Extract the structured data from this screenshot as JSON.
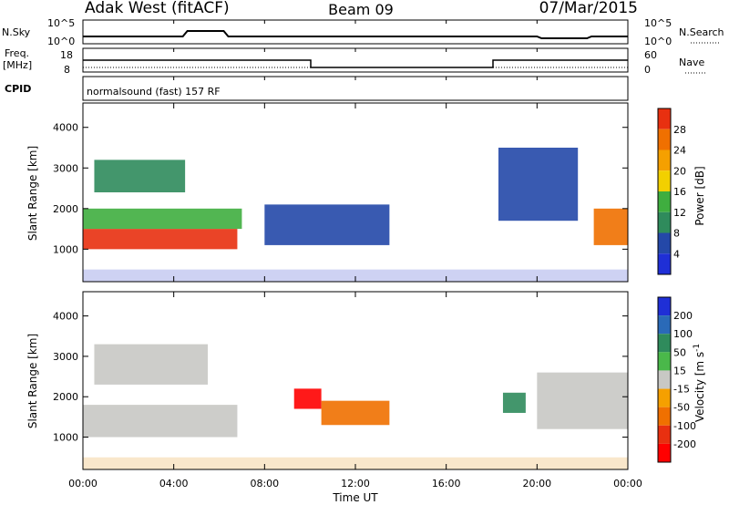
{
  "header": {
    "station": "Adak West (fitACF)",
    "beam": "Beam 09",
    "date": "07/Mar/2015"
  },
  "summary_panels": {
    "nsky": {
      "label": "N.Sky",
      "ticks": [
        "10^5",
        "10^0"
      ]
    },
    "nsearch": {
      "label": "N.Search",
      "ticks": [
        "10^5",
        "10^0"
      ]
    },
    "freq": {
      "label_line1": "Freq.",
      "label_line2": "[MHz]",
      "ticks": [
        "18",
        "8"
      ]
    },
    "nave": {
      "label": "Nave",
      "ticks": [
        "60",
        "0"
      ]
    },
    "cpid": {
      "label": "CPID",
      "text": "normalsound (fast) 157 RF"
    }
  },
  "chart_data": [
    {
      "type": "heatmap",
      "title": "",
      "ylabel": "Slant Range [km]",
      "xlabel": "",
      "ylim": [
        200,
        4600
      ],
      "xlim_hours": [
        0,
        24
      ],
      "y_ticks": [
        "1000",
        "2000",
        "3000",
        "4000"
      ],
      "colorbar": {
        "label": "Power [dB]",
        "ticks": [
          "4",
          "8",
          "12",
          "16",
          "20",
          "24",
          "28"
        ],
        "levels": [
          0,
          4,
          8,
          12,
          16,
          20,
          24,
          28,
          32
        ],
        "colors": [
          "#1f2fd6",
          "#2448a8",
          "#2f8b5c",
          "#3fae3f",
          "#f2d000",
          "#f5a000",
          "#f07000",
          "#e83010"
        ]
      },
      "regions": [
        {
          "t0": 0.0,
          "t1": 6.8,
          "r0": 1000,
          "r1": 1500,
          "value": 28
        },
        {
          "t0": 0.0,
          "t1": 7.0,
          "r0": 1500,
          "r1": 2000,
          "value": 14
        },
        {
          "t0": 0.5,
          "t1": 4.5,
          "r0": 2400,
          "r1": 3200,
          "value": 10
        },
        {
          "t0": 8.0,
          "t1": 13.5,
          "r0": 1100,
          "r1": 2100,
          "value": 6
        },
        {
          "t0": 18.3,
          "t1": 21.8,
          "r0": 1700,
          "r1": 3500,
          "value": 5
        },
        {
          "t0": 22.5,
          "t1": 24.0,
          "r0": 1100,
          "r1": 2000,
          "value": 24
        }
      ]
    },
    {
      "type": "heatmap",
      "title": "",
      "ylabel": "Slant Range [km]",
      "xlabel": "Time UT",
      "ylim": [
        200,
        4600
      ],
      "xlim_hours": [
        0,
        24
      ],
      "x_ticks": [
        "00:00",
        "04:00",
        "08:00",
        "12:00",
        "16:00",
        "20:00",
        "00:00"
      ],
      "y_ticks": [
        "1000",
        "2000",
        "3000",
        "4000"
      ],
      "colorbar": {
        "label": "Velocity [m s-1]",
        "ticks": [
          "200",
          "100",
          "50",
          "15",
          "-15",
          "-50",
          "-100",
          "-200"
        ],
        "colors": [
          "#1f2fd6",
          "#2a6ab8",
          "#2f8b5c",
          "#4ab84a",
          "#c8c8c4",
          "#f5a000",
          "#f07000",
          "#e83010",
          "#ff0000"
        ]
      },
      "regions": [
        {
          "t0": 0.0,
          "t1": 6.8,
          "r0": 1000,
          "r1": 1800,
          "value": 0
        },
        {
          "t0": 0.5,
          "t1": 5.5,
          "r0": 2300,
          "r1": 3300,
          "value": 0
        },
        {
          "t0": 9.3,
          "t1": 10.5,
          "r0": 1700,
          "r1": 2200,
          "value": -200
        },
        {
          "t0": 10.5,
          "t1": 13.5,
          "r0": 1300,
          "r1": 1900,
          "value": -60
        },
        {
          "t0": 18.5,
          "t1": 19.5,
          "r0": 1600,
          "r1": 2100,
          "value": 50
        },
        {
          "t0": 20.0,
          "t1": 24.0,
          "r0": 1200,
          "r1": 2600,
          "value": 0
        }
      ]
    }
  ],
  "colors": {
    "axis": "#000000",
    "trace": "#000000",
    "ground_scatter": "#c8c8c4"
  }
}
